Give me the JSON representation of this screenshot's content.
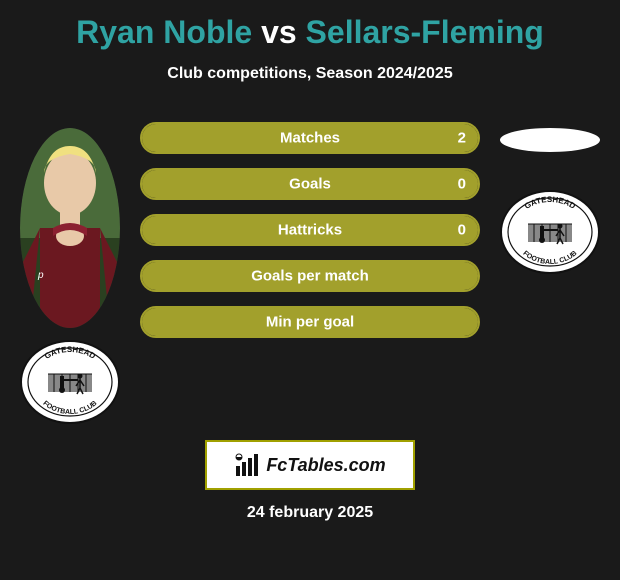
{
  "title": {
    "player1": "Ryan Noble",
    "vs": "vs",
    "player2": "Sellars-Fleming",
    "player1_color": "#2fa3a3",
    "vs_color": "#ffffff",
    "player2_color": "#2fa3a3"
  },
  "subtitle": "Club competitions, Season 2024/2025",
  "stats": {
    "bar_color": "#a2a02c",
    "border_color": "#a2a02c",
    "rows": [
      {
        "label": "Matches",
        "value_right": "2",
        "fill_pct": 100
      },
      {
        "label": "Goals",
        "value_right": "0",
        "fill_pct": 100
      },
      {
        "label": "Hattricks",
        "value_right": "0",
        "fill_pct": 100
      },
      {
        "label": "Goals per match",
        "value_right": "",
        "fill_pct": 100
      },
      {
        "label": "Min per goal",
        "value_right": "",
        "fill_pct": 100
      }
    ]
  },
  "left_player": {
    "has_photo": true,
    "club_name": "Gateshead Football Club"
  },
  "right_player": {
    "has_photo": false,
    "club_name": "Gateshead Football Club"
  },
  "brand": {
    "text": "FcTables.com",
    "border_color": "#a0a000"
  },
  "date": "24 february 2025",
  "colors": {
    "background": "#1a1a1a",
    "text": "#ffffff"
  }
}
